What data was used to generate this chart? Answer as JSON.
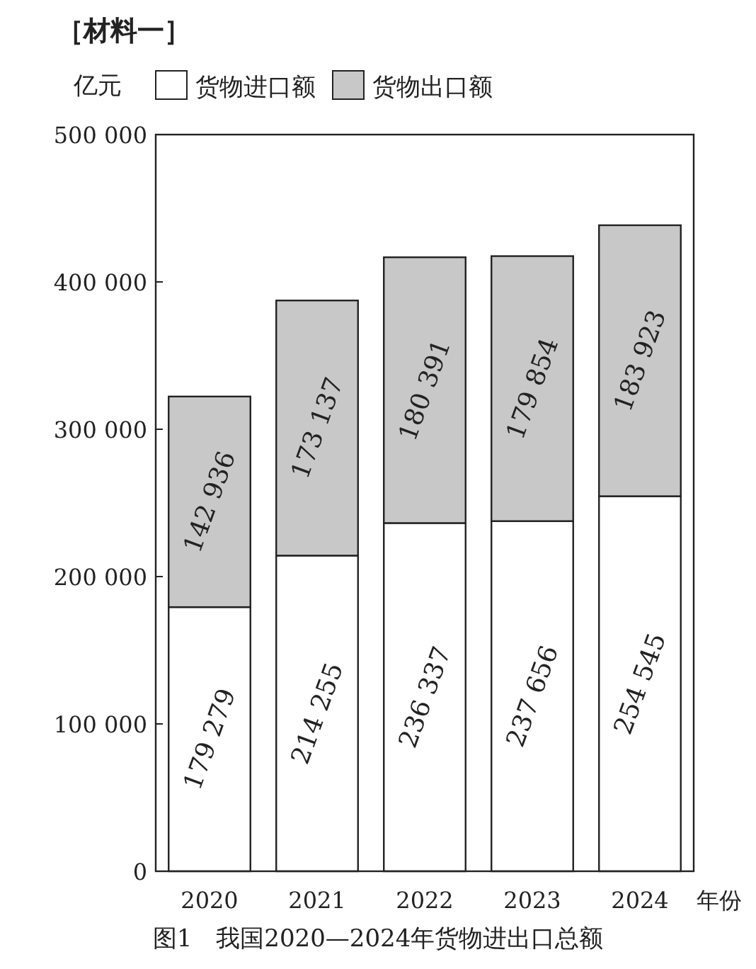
{
  "chart_data": {
    "type": "bar",
    "title": "图1　我国2020—2024年货物进出口总额",
    "xlabel": "年份",
    "ylabel": "亿元",
    "annotations": [
      "［材料一］"
    ],
    "categories": [
      "2020",
      "2021",
      "2022",
      "2023",
      "2024"
    ],
    "stacked": true,
    "legend": "top",
    "ylim": [
      0,
      500000
    ],
    "yticks": [
      0,
      {
        "value": 100000,
        "label": "100 000"
      },
      {
        "value": 200000,
        "label": "200 000"
      },
      {
        "value": 300000,
        "label": "300 000"
      },
      {
        "value": 400000,
        "label": "400 000"
      },
      {
        "value": 500000,
        "label": "500 000"
      }
    ],
    "series": [
      {
        "name": "货物进口额",
        "color": "#ffffff",
        "values": [
          179279,
          214255,
          236337,
          237656,
          254545
        ],
        "value_labels": [
          "179 279",
          "214 255",
          "236 337",
          "237 656",
          "254 545"
        ]
      },
      {
        "name": "货物出口额",
        "color": "#c8c8c8",
        "values": [
          142936,
          173137,
          180391,
          179854,
          183923
        ],
        "value_labels": [
          "142 936",
          "173 137",
          "180 391",
          "179 854",
          "183 923"
        ]
      }
    ]
  }
}
